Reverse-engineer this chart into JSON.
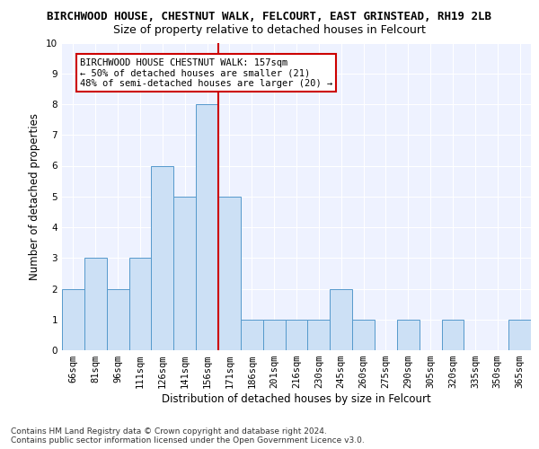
{
  "title_line1": "BIRCHWOOD HOUSE, CHESTNUT WALK, FELCOURT, EAST GRINSTEAD, RH19 2LB",
  "title_line2": "Size of property relative to detached houses in Felcourt",
  "xlabel": "Distribution of detached houses by size in Felcourt",
  "ylabel": "Number of detached properties",
  "footer_line1": "Contains HM Land Registry data © Crown copyright and database right 2024.",
  "footer_line2": "Contains public sector information licensed under the Open Government Licence v3.0.",
  "categories": [
    "66sqm",
    "81sqm",
    "96sqm",
    "111sqm",
    "126sqm",
    "141sqm",
    "156sqm",
    "171sqm",
    "186sqm",
    "201sqm",
    "216sqm",
    "230sqm",
    "245sqm",
    "260sqm",
    "275sqm",
    "290sqm",
    "305sqm",
    "320sqm",
    "335sqm",
    "350sqm",
    "365sqm"
  ],
  "values": [
    2,
    3,
    2,
    3,
    6,
    5,
    8,
    5,
    1,
    1,
    1,
    1,
    2,
    1,
    0,
    1,
    0,
    1,
    0,
    0,
    1
  ],
  "bar_color": "#cce0f5",
  "bar_edge_color": "#5599cc",
  "annotation_text": "BIRCHWOOD HOUSE CHESTNUT WALK: 157sqm\n← 50% of detached houses are smaller (21)\n48% of semi-detached houses are larger (20) →",
  "annotation_box_color": "#ffffff",
  "annotation_box_edge_color": "#cc0000",
  "vline_color": "#cc0000",
  "ylim": [
    0,
    10
  ],
  "yticks": [
    0,
    1,
    2,
    3,
    4,
    5,
    6,
    7,
    8,
    9,
    10
  ],
  "background_color": "#eef2ff",
  "grid_color": "#ffffff",
  "title1_fontsize": 9,
  "title2_fontsize": 9,
  "ylabel_fontsize": 8.5,
  "xlabel_fontsize": 8.5,
  "footer_fontsize": 6.5,
  "tick_fontsize": 7.5,
  "annot_fontsize": 7.5
}
